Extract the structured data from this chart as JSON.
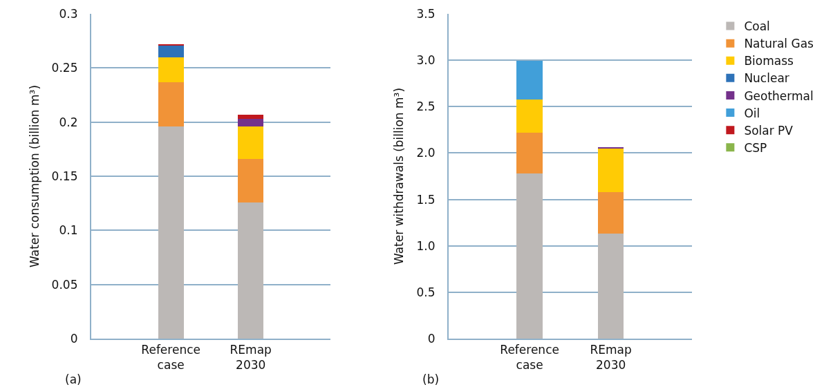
{
  "chart_data": [
    {
      "type": "bar",
      "stacked": true,
      "ylabel": "Water consumption (billion m³)",
      "categories": [
        "Reference\ncase",
        "REmap\n2030"
      ],
      "ylim": [
        0,
        0.3
      ],
      "yticks": [
        0,
        0.05,
        0.1,
        0.15,
        0.2,
        0.25,
        0.3
      ],
      "grid": "y",
      "legend": "right",
      "annotations": [
        "(a)"
      ],
      "series": [
        {
          "name": "Coal",
          "color": "#bcb8b6",
          "values": [
            0.196,
            0.126
          ]
        },
        {
          "name": "Natural Gas",
          "color": "#f19337",
          "values": [
            0.041,
            0.04
          ]
        },
        {
          "name": "Biomass",
          "color": "#ffcb05",
          "values": [
            0.023,
            0.03
          ]
        },
        {
          "name": "Nuclear",
          "color": "#2e72b8",
          "values": [
            0.011,
            null
          ]
        },
        {
          "name": "Geothermal",
          "color": "#74318b",
          "values": [
            null,
            0.007
          ]
        },
        {
          "name": "Solar PV",
          "color": "#c0181e",
          "values": [
            0.001,
            0.0036
          ]
        }
      ]
    },
    {
      "type": "bar",
      "stacked": true,
      "ylabel": "Water withdrawals (billion m³)",
      "categories": [
        "Reference\ncase",
        "REmap\n2030"
      ],
      "ylim": [
        0,
        3.5
      ],
      "yticks": [
        0,
        {
          "value": 0.5,
          "label": "0.5"
        },
        {
          "value": 1,
          "label": "1.0"
        },
        {
          "value": 1.5,
          "label": "1.5"
        },
        {
          "value": 2,
          "label": "2.0"
        },
        {
          "value": 2.5,
          "label": "2.5"
        },
        {
          "value": 3,
          "label": "3.0"
        },
        {
          "value": 3.5,
          "label": "3.5"
        }
      ],
      "grid": "y",
      "legend": "right",
      "annotations": [
        "(b)"
      ],
      "series": [
        {
          "name": "Coal",
          "color": "#bcb8b6",
          "values": [
            1.78,
            1.13
          ]
        },
        {
          "name": "Natural Gas",
          "color": "#f19337",
          "values": [
            0.44,
            0.45
          ]
        },
        {
          "name": "Biomass",
          "color": "#ffcb05",
          "values": [
            0.36,
            0.47
          ]
        },
        {
          "name": "Nuclear",
          "color": "#2e72b8",
          "values": [
            null,
            null
          ]
        },
        {
          "name": "Geothermal",
          "color": "#74318b",
          "values": [
            null,
            0.01
          ]
        },
        {
          "name": "Oil",
          "color": "#419fd9",
          "values": [
            0.41,
            null
          ]
        },
        {
          "name": "Solar PV",
          "color": "#c0181e",
          "values": [
            null,
            null
          ]
        },
        {
          "name": "CSP",
          "color": "#8ab54b",
          "values": [
            null,
            null
          ]
        }
      ]
    }
  ]
}
